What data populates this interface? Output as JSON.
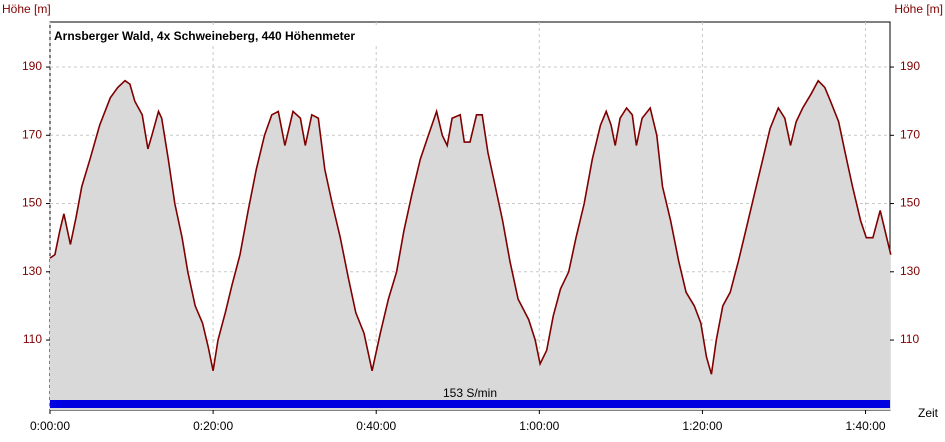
{
  "chart_data": {
    "type": "area",
    "title": "Arnsberger Wald, 4x Schweineberg, 440 Höhenmeter",
    "y_label": "Höhe [m]",
    "x_label": "Zeit",
    "annotation": "153 S/min",
    "x": [
      0,
      0.6,
      1.2,
      1.7,
      2.5,
      3.2,
      3.9,
      4.9,
      6.1,
      7.4,
      8.3,
      9.2,
      9.8,
      10.4,
      11.3,
      12.0,
      12.5,
      13.3,
      13.7,
      14.5,
      15.3,
      16.2,
      16.9,
      17.8,
      18.7,
      19.4,
      20.0,
      20.6,
      21.5,
      22.3,
      23.3,
      24.3,
      25.3,
      26.3,
      27.2,
      28.0,
      28.8,
      29.8,
      30.7,
      31.3,
      32.1,
      32.9,
      33.7,
      34.6,
      35.6,
      36.6,
      37.5,
      38.5,
      39.5,
      40.5,
      41.5,
      42.5,
      43.4,
      44.4,
      45.4,
      46.4,
      47.4,
      48.1,
      48.7,
      49.3,
      50.3,
      50.8,
      51.5,
      52.3,
      53.0,
      53.7,
      54.6,
      55.5,
      56.4,
      57.4,
      58.7,
      59.5,
      60.1,
      60.9,
      61.7,
      62.6,
      63.6,
      64.5,
      65.5,
      66.5,
      67.5,
      68.2,
      68.8,
      69.3,
      69.9,
      70.7,
      71.4,
      71.9,
      72.6,
      73.6,
      74.4,
      75.1,
      76.1,
      77.1,
      78.0,
      79.0,
      79.8,
      80.5,
      81.1,
      81.7,
      82.5,
      83.4,
      84.4,
      85.4,
      86.4,
      87.4,
      88.3,
      89.3,
      90.1,
      90.8,
      91.5,
      92.3,
      93.3,
      94.2,
      95.0,
      95.7,
      96.7,
      97.5,
      98.4,
      99.4,
      100.1,
      100.9,
      101.8,
      102.6,
      103.1
    ],
    "series": [
      {
        "name": "Höhe",
        "color": "#800000",
        "fill": "#d9d9d9",
        "values": [
          134,
          135,
          142,
          147,
          138,
          146,
          155,
          163,
          173,
          181,
          184,
          186,
          185,
          180,
          176,
          166,
          170,
          177,
          175,
          163,
          150,
          140,
          130,
          120,
          115,
          108,
          101,
          110,
          118,
          126,
          135,
          148,
          160,
          170,
          176,
          177,
          167,
          177,
          175,
          167,
          176,
          175,
          160,
          150,
          140,
          128,
          118,
          112,
          101,
          112,
          122,
          130,
          142,
          153,
          163,
          170,
          177,
          170,
          167,
          175,
          176,
          168,
          168,
          176,
          176,
          165,
          155,
          145,
          133,
          122,
          116,
          110,
          103,
          107,
          117,
          125,
          130,
          140,
          150,
          163,
          173,
          177,
          173,
          167,
          175,
          178,
          176,
          167,
          175,
          178,
          170,
          155,
          145,
          133,
          124,
          120,
          115,
          105,
          100,
          110,
          120,
          124,
          133,
          143,
          153,
          163,
          172,
          178,
          175,
          167,
          174,
          178,
          182,
          186,
          184,
          180,
          174,
          165,
          155,
          145,
          140,
          140,
          148,
          140,
          135
        ]
      }
    ],
    "xlim": [
      0,
      103
    ],
    "ylim": [
      89.5,
      203.2
    ],
    "xticks": [
      {
        "value": 0,
        "label": "0:00:00"
      },
      {
        "value": 20,
        "label": "0:20:00"
      },
      {
        "value": 40,
        "label": "0:40:00"
      },
      {
        "value": 60,
        "label": "1:00:00"
      },
      {
        "value": 80,
        "label": "1:20:00"
      },
      {
        "value": 100,
        "label": "1:40:00"
      }
    ],
    "yticks": [
      110,
      130,
      150,
      170,
      190
    ],
    "grid": true
  }
}
